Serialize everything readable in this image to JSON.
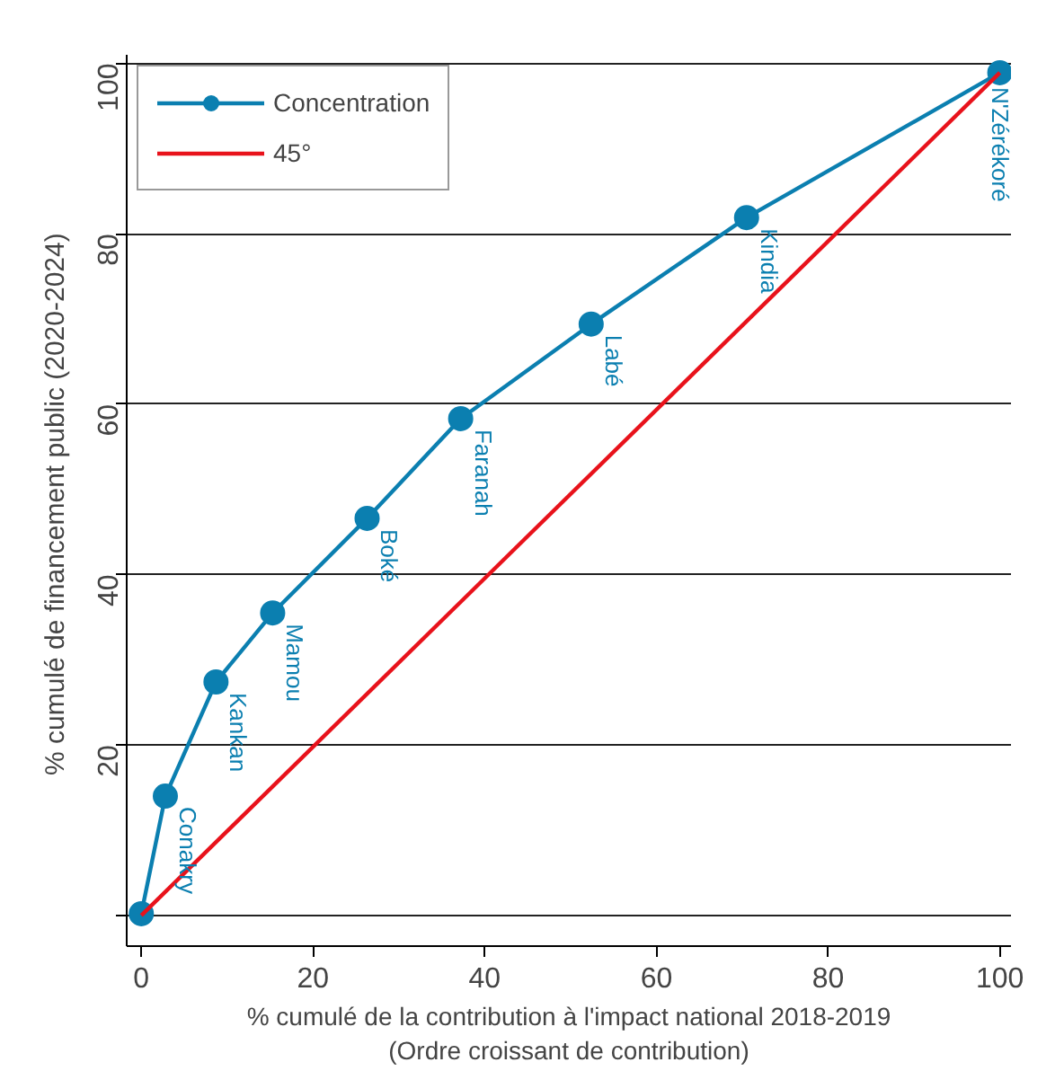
{
  "chart_data": {
    "type": "line",
    "xlabel": "% cumulé de la contribution à l'impact national 2018-2019\n(Ordre croissant de contribution)",
    "ylabel": "% cumulé de financement public  (2020-2024)",
    "x": [
      0,
      2.8,
      8.7,
      15.3,
      26.3,
      37.2,
      52.4,
      70.5,
      100
    ],
    "series": [
      {
        "name": "Concentration",
        "color": "#0b7fb0",
        "values": [
          0.2,
          14.0,
          27.4,
          35.5,
          46.6,
          58.3,
          69.4,
          81.9,
          98.9
        ],
        "marker": "circle"
      },
      {
        "name": "45°",
        "color": "#e8121b",
        "x": [
          0,
          100
        ],
        "values": [
          0,
          98.9
        ],
        "marker": "none"
      }
    ],
    "annotations": [
      {
        "text": "Conakry",
        "x": 2.8,
        "y": 14.0
      },
      {
        "text": "Kankan",
        "x": 8.7,
        "y": 27.4
      },
      {
        "text": "Mamou",
        "x": 15.3,
        "y": 35.5
      },
      {
        "text": "Boké",
        "x": 26.3,
        "y": 46.6
      },
      {
        "text": "Faranah",
        "x": 37.2,
        "y": 58.3
      },
      {
        "text": "Labé",
        "x": 52.4,
        "y": 69.4
      },
      {
        "text": "Kindia",
        "x": 70.5,
        "y": 81.9
      },
      {
        "text": "N'Zérékoré",
        "x": 100,
        "y": 98.9
      }
    ],
    "xlim": [
      -1.7,
      101.3
    ],
    "ylim": [
      -3.6,
      101
    ],
    "xticks": [
      0,
      20,
      40,
      60,
      80,
      100
    ],
    "yticks": [
      {
        "value": 0,
        "label": null
      },
      20,
      40,
      60,
      80,
      100
    ],
    "grid": "y",
    "legend": "top left"
  }
}
